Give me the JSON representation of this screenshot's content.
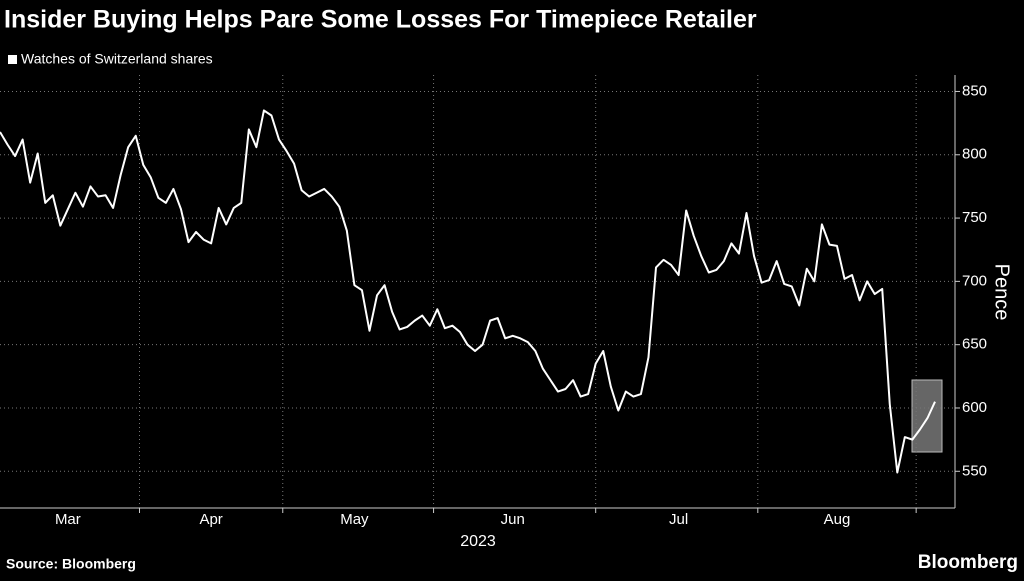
{
  "chart_data": {
    "type": "line",
    "title": "Insider Buying Helps Pare Some Losses For Timepiece Retailer",
    "ylabel": "Pence",
    "xlabel": "2023",
    "source": "Source: Bloomberg",
    "brand": "Bloomberg",
    "grid": true,
    "ylim": [
      521,
      863
    ],
    "yticks": [
      550,
      600,
      650,
      700,
      750,
      800,
      850
    ],
    "categories": [
      null,
      null,
      null,
      null,
      null,
      null,
      null,
      null,
      null,
      "Mar",
      null,
      null,
      null,
      null,
      null,
      null,
      null,
      null,
      null,
      null,
      null,
      null,
      null,
      null,
      null,
      null,
      null,
      null,
      "Apr",
      null,
      null,
      null,
      null,
      null,
      null,
      null,
      null,
      null,
      null,
      null,
      null,
      null,
      null,
      null,
      null,
      null,
      null,
      "May",
      null,
      null,
      null,
      null,
      null,
      null,
      null,
      null,
      null,
      null,
      null,
      null,
      null,
      null,
      null,
      null,
      null,
      null,
      null,
      null,
      "Jun",
      null,
      null,
      null,
      null,
      null,
      null,
      null,
      null,
      null,
      null,
      null,
      null,
      null,
      null,
      null,
      null,
      null,
      null,
      null,
      null,
      null,
      "Jul",
      null,
      null,
      null,
      null,
      null,
      null,
      null,
      null,
      null,
      null,
      null,
      null,
      null,
      null,
      null,
      null,
      null,
      null,
      null,
      null,
      "Aug",
      null,
      null,
      null,
      null,
      null,
      null,
      null,
      null,
      null,
      null,
      null,
      null,
      null
    ],
    "series": [
      {
        "name": "Watches of Switzerland shares",
        "color": "#ffffff",
        "values": [
          818,
          808,
          799,
          812,
          778,
          801,
          762,
          768,
          744,
          757,
          770,
          759,
          775,
          767,
          768,
          758,
          784,
          806,
          815,
          792,
          782,
          766,
          762,
          773,
          757,
          731,
          739,
          733,
          730,
          758,
          745,
          758,
          762,
          820,
          806,
          835,
          831,
          812,
          803,
          793,
          772,
          767,
          770,
          773,
          767,
          759,
          740,
          697,
          693,
          661,
          689,
          697,
          676,
          662,
          664,
          669,
          673,
          665,
          678,
          663,
          665,
          660,
          650,
          645,
          650,
          669,
          671,
          655,
          657,
          655,
          652,
          645,
          631,
          622,
          613,
          615,
          622,
          609,
          611,
          635,
          645,
          617,
          598,
          613,
          609,
          611,
          640,
          711,
          717,
          713,
          705,
          756,
          736,
          720,
          707,
          709,
          716,
          730,
          722,
          754,
          720,
          699,
          701,
          716,
          698,
          696,
          681,
          710,
          700,
          745,
          729,
          728,
          702,
          705,
          685,
          700,
          690,
          694,
          603,
          549,
          577,
          575,
          583,
          592,
          605
        ]
      }
    ]
  }
}
